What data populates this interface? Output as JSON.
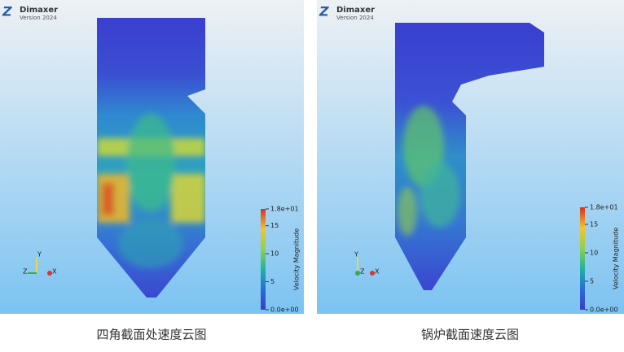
{
  "panels": [
    {
      "logo": {
        "name": "Dimaxer",
        "version": "Version 2024"
      },
      "colorbar": {
        "title": "Velocity Magnitude",
        "range": [
          0,
          18
        ],
        "ticks": [
          {
            "value": 18,
            "label": "1.8e+01"
          },
          15,
          10,
          5,
          {
            "value": 0,
            "label": "0.0e+00"
          }
        ]
      },
      "axes": {
        "y": "Y",
        "z": "Z",
        "x": "X"
      },
      "caption": "四角截面处速度云图"
    },
    {
      "logo": {
        "name": "Dimaxer",
        "version": "Version 2024"
      },
      "colorbar": {
        "title": "Velocity Magnitude",
        "range": [
          0,
          18
        ],
        "ticks": [
          {
            "value": 18,
            "label": "1.8e+01"
          },
          15,
          10,
          5,
          {
            "value": 0,
            "label": "0.0e+00"
          }
        ]
      },
      "axes": {
        "y": "Y",
        "z": "Z",
        "x": "X"
      },
      "caption": "锅炉截面速度云图"
    }
  ]
}
